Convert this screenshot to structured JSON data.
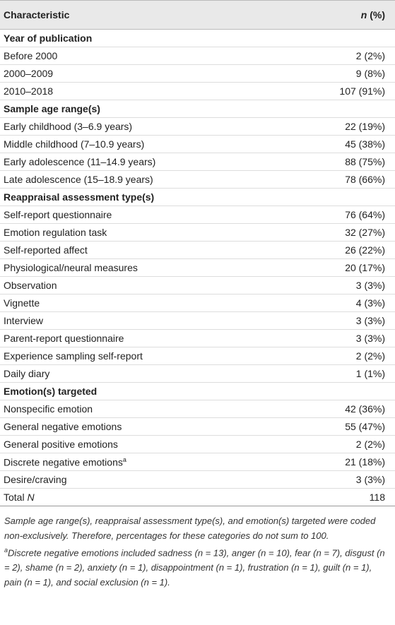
{
  "header": {
    "characteristic": "Characteristic",
    "n": "n",
    "pct": "(%)"
  },
  "rows": [
    {
      "section": "Year of publication"
    },
    {
      "label": "Before 2000",
      "value": "2 (2%)"
    },
    {
      "label": "2000–2009",
      "value": "9 (8%)"
    },
    {
      "label": "2010–2018",
      "value": "107 (91%)"
    },
    {
      "section": "Sample age range(s)"
    },
    {
      "label": "Early childhood (3–6.9 years)",
      "value": "22 (19%)"
    },
    {
      "label": "Middle childhood (7–10.9 years)",
      "value": "45 (38%)"
    },
    {
      "label": "Early adolescence (11–14.9 years)",
      "value": "88 (75%)"
    },
    {
      "label": "Late adolescence (15–18.9 years)",
      "value": "78 (66%)"
    },
    {
      "section": "Reappraisal assessment type(s)"
    },
    {
      "label": "Self-report questionnaire",
      "value": "76 (64%)"
    },
    {
      "label": "Emotion regulation task",
      "value": "32 (27%)"
    },
    {
      "label": "Self-reported affect",
      "value": "26 (22%)"
    },
    {
      "label": "Physiological/neural measures",
      "value": "20 (17%)"
    },
    {
      "label": "Observation",
      "value": "3 (3%)"
    },
    {
      "label": "Vignette",
      "value": "4 (3%)"
    },
    {
      "label": "Interview",
      "value": "3 (3%)"
    },
    {
      "label": "Parent-report questionnaire",
      "value": "3 (3%)"
    },
    {
      "label": "Experience sampling self-report",
      "value": "2 (2%)"
    },
    {
      "label": "Daily diary",
      "value": "1 (1%)"
    },
    {
      "section": "Emotion(s) targeted"
    },
    {
      "label": "Nonspecific emotion",
      "value": "42 (36%)"
    },
    {
      "label": "General negative emotions",
      "value": "55 (47%)"
    },
    {
      "label": "General positive emotions",
      "value": "2 (2%)"
    },
    {
      "label": "Discrete negative emotions",
      "sup": "a",
      "value": "21 (18%)"
    },
    {
      "label": "Desire/craving",
      "value": "3 (3%)"
    },
    {
      "label": "Total",
      "italic": "N",
      "value": "118"
    }
  ],
  "notes": [
    {
      "text": "Sample age range(s), reappraisal assessment type(s), and emotion(s) targeted were coded non-exclusively. Therefore, percentages for these categories do not sum to 100."
    },
    {
      "sup": "a",
      "text": "Discrete negative emotions included sadness (n = 13), anger (n = 10), fear (n = 7), disgust (n = 2), shame (n = 2), anxiety (n = 1), disappointment (n = 1), frustration (n = 1), guilt (n = 1), pain (n = 1), and social exclusion (n = 1)."
    }
  ]
}
